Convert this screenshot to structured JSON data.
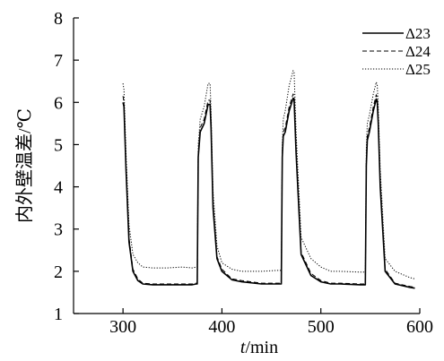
{
  "chart_data": {
    "type": "line",
    "title": "",
    "xlabel": {
      "italic": "t",
      "rest": "/min"
    },
    "ylabel": "内外壁温差/℃",
    "xlim": [
      250,
      600
    ],
    "ylim": [
      1,
      8
    ],
    "xticks": [
      300,
      400,
      500,
      600
    ],
    "yticks": [
      1,
      2,
      3,
      4,
      5,
      6,
      7,
      8
    ],
    "grid": false,
    "legend_position": "top-right",
    "series": [
      {
        "name": "Δ23",
        "style": "solid",
        "color": "#000000",
        "x": [
          300,
          301,
          303,
          306,
          310,
          315,
          320,
          330,
          345,
          360,
          370,
          374,
          375,
          376,
          378,
          382,
          386,
          388,
          389,
          391,
          395,
          400,
          410,
          420,
          440,
          455,
          460,
          461,
          462,
          464,
          468,
          472,
          473,
          475,
          480,
          490,
          500,
          510,
          520,
          540,
          545,
          546,
          547,
          549,
          553,
          556,
          557,
          558,
          560,
          565,
          575,
          590,
          595
        ],
        "y": [
          6.0,
          5.9,
          4.4,
          2.7,
          2.0,
          1.78,
          1.7,
          1.68,
          1.68,
          1.68,
          1.68,
          1.7,
          1.7,
          4.7,
          5.3,
          5.5,
          5.95,
          5.95,
          5.4,
          3.5,
          2.3,
          2.0,
          1.8,
          1.75,
          1.7,
          1.7,
          1.7,
          4.7,
          5.2,
          5.3,
          5.8,
          6.1,
          6.05,
          4.8,
          2.4,
          1.9,
          1.75,
          1.7,
          1.7,
          1.68,
          1.68,
          4.5,
          5.1,
          5.3,
          5.8,
          6.08,
          6.0,
          5.5,
          4.0,
          2.0,
          1.7,
          1.62,
          1.6
        ]
      },
      {
        "name": "Δ24",
        "style": "dashed",
        "color": "#000000",
        "x": [
          300,
          301,
          303,
          306,
          310,
          315,
          320,
          330,
          345,
          360,
          370,
          374,
          375,
          376,
          378,
          382,
          386,
          388,
          389,
          391,
          395,
          400,
          410,
          420,
          440,
          455,
          460,
          461,
          462,
          464,
          468,
          472,
          473,
          475,
          480,
          490,
          500,
          510,
          520,
          540,
          545,
          546,
          547,
          549,
          553,
          556,
          557,
          558,
          560,
          565,
          575,
          590,
          595
        ],
        "y": [
          6.15,
          6.0,
          4.5,
          2.8,
          2.05,
          1.82,
          1.72,
          1.7,
          1.7,
          1.7,
          1.7,
          1.72,
          1.72,
          4.8,
          5.4,
          5.6,
          6.05,
          6.05,
          5.5,
          3.6,
          2.35,
          2.05,
          1.82,
          1.78,
          1.72,
          1.72,
          1.72,
          4.8,
          5.3,
          5.4,
          5.9,
          6.2,
          6.15,
          4.9,
          2.45,
          1.95,
          1.78,
          1.72,
          1.72,
          1.7,
          1.7,
          4.6,
          5.2,
          5.4,
          5.9,
          6.18,
          6.1,
          5.6,
          4.1,
          2.05,
          1.72,
          1.64,
          1.62
        ]
      },
      {
        "name": "Δ25",
        "style": "dotted",
        "color": "#000000",
        "x": [
          300,
          301,
          303,
          306,
          310,
          315,
          320,
          330,
          345,
          360,
          370,
          374,
          375,
          376,
          378,
          382,
          386,
          388,
          389,
          391,
          395,
          400,
          410,
          420,
          440,
          455,
          460,
          461,
          462,
          464,
          468,
          472,
          473,
          475,
          480,
          490,
          500,
          510,
          520,
          540,
          545,
          546,
          547,
          549,
          553,
          556,
          557,
          558,
          560,
          565,
          575,
          590,
          595
        ],
        "y": [
          6.45,
          6.3,
          4.8,
          3.1,
          2.4,
          2.2,
          2.1,
          2.08,
          2.08,
          2.1,
          2.08,
          2.1,
          2.1,
          5.0,
          5.6,
          5.9,
          6.45,
          6.45,
          5.8,
          3.9,
          2.6,
          2.2,
          2.05,
          2.0,
          2.0,
          2.02,
          2.02,
          5.0,
          5.6,
          5.8,
          6.4,
          6.75,
          6.7,
          5.3,
          2.8,
          2.3,
          2.1,
          2.0,
          2.0,
          1.98,
          1.98,
          4.9,
          5.5,
          5.7,
          6.2,
          6.48,
          6.4,
          5.9,
          4.4,
          2.3,
          2.0,
          1.85,
          1.82
        ]
      }
    ]
  }
}
